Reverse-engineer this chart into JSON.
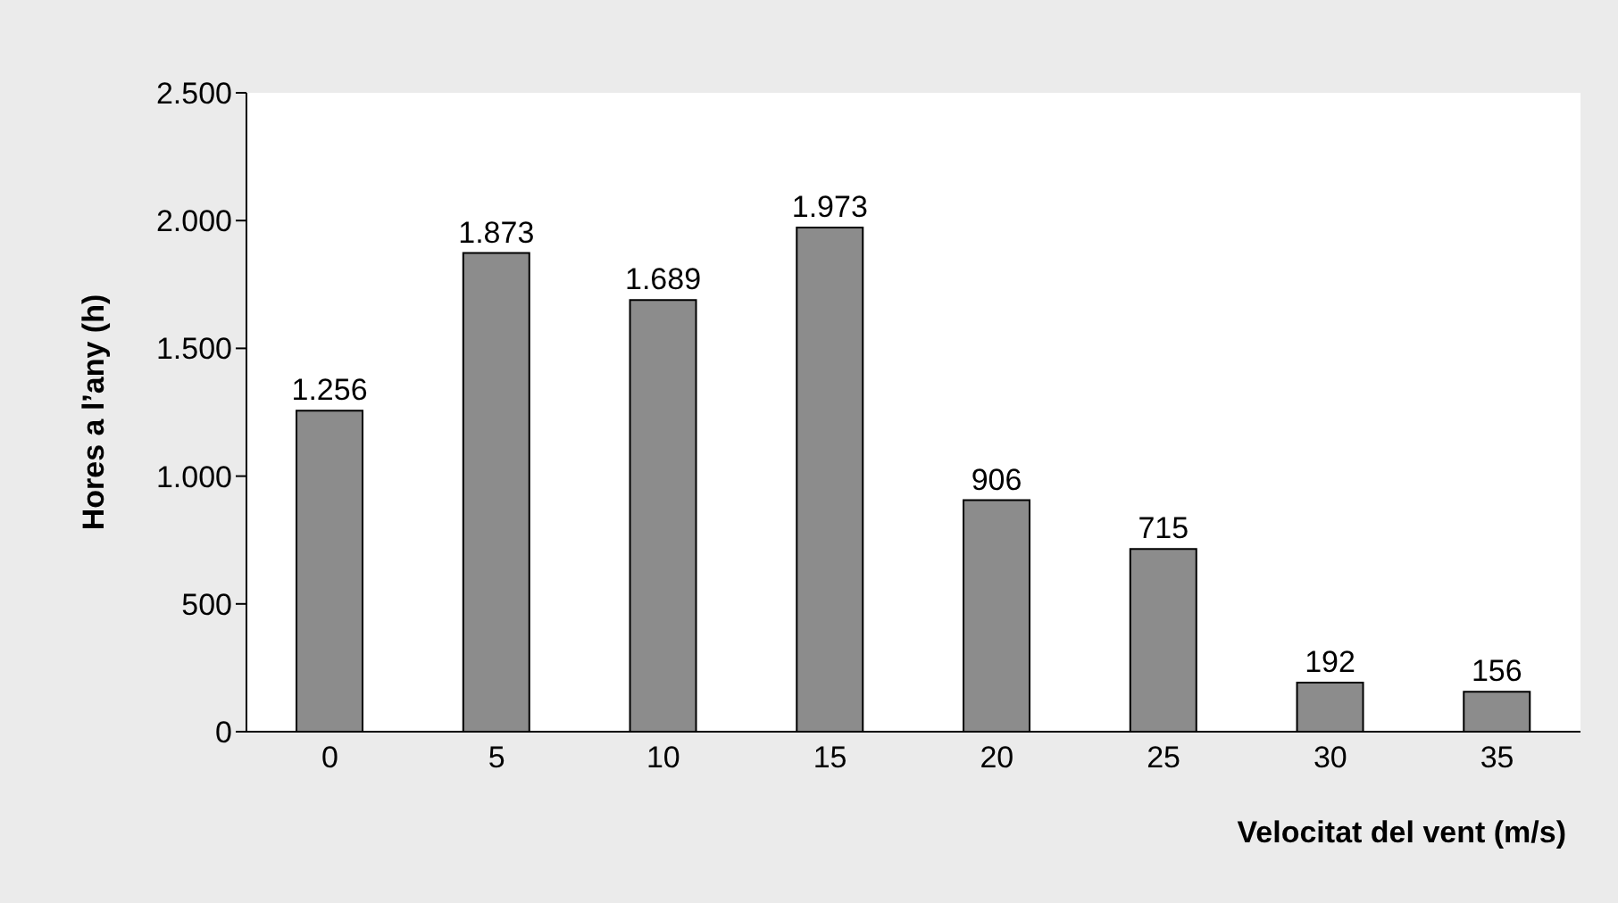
{
  "chart_data": {
    "type": "bar",
    "xlabel": "Velocitat del vent (m/s)",
    "ylabel": "Hores a l’any (h)",
    "categories": [
      "0",
      "5",
      "10",
      "15",
      "20",
      "25",
      "30",
      "35"
    ],
    "values": [
      1256,
      1873,
      1689,
      1973,
      906,
      715,
      192,
      156
    ],
    "value_labels": [
      "1.256",
      "1.873",
      "1.689",
      "1.973",
      "906",
      "715",
      "192",
      "156"
    ],
    "color": "#8c8c8c",
    "ylim": [
      0,
      2500
    ],
    "yticks": [
      0,
      {
        "value": 500,
        "label": "500"
      },
      {
        "value": 1000,
        "label": "1.000"
      },
      {
        "value": 1500,
        "label": "1.500"
      },
      {
        "value": 2000,
        "label": "2.000"
      },
      {
        "value": 2500,
        "label": "2.500"
      }
    ],
    "grid": false,
    "legend": false
  }
}
